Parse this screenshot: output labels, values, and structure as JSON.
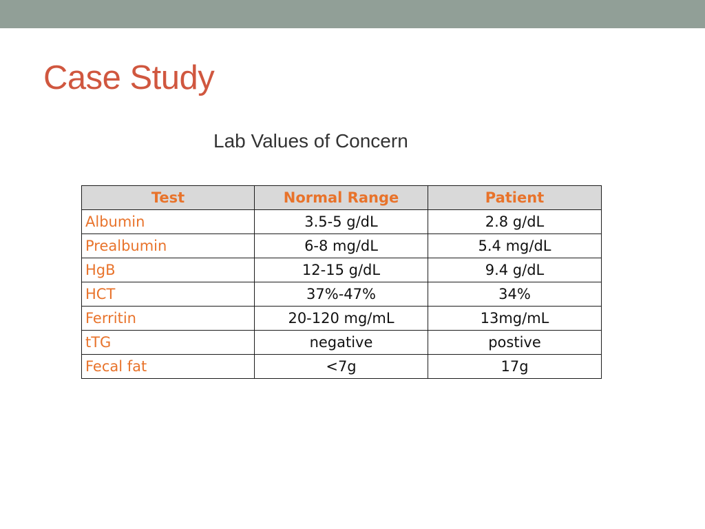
{
  "slide": {
    "title": "Case Study",
    "subtitle": "Lab Values of Concern"
  },
  "colors": {
    "top_bar": "#919f97",
    "title": "#d0573f",
    "table_accent": "#e8732b",
    "header_fill": "#d9d9d9"
  },
  "table": {
    "headers": [
      "Test",
      "Normal Range",
      "Patient"
    ],
    "rows": [
      [
        "Albumin",
        "3.5-5 g/dL",
        "2.8 g/dL"
      ],
      [
        "Prealbumin",
        "6-8 mg/dL",
        "5.4 mg/dL"
      ],
      [
        "HgB",
        "12-15 g/dL",
        "9.4 g/dL"
      ],
      [
        "HCT",
        "37%-47%",
        "34%"
      ],
      [
        "Ferritin",
        "20-120 mg/mL",
        "13mg/mL"
      ],
      [
        "tTG",
        "negative",
        "postive"
      ],
      [
        "Fecal fat",
        "<7g",
        "17g"
      ]
    ]
  }
}
